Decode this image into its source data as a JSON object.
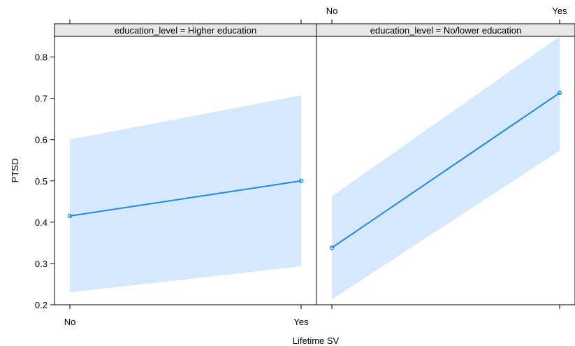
{
  "chart_data": {
    "type": "line",
    "xlabel": "Lifetime SV",
    "ylabel": "PTSD",
    "categories": [
      "No",
      "Yes"
    ],
    "ylim": [
      0.2,
      0.85
    ],
    "yticks": [
      0.2,
      0.3,
      0.4,
      0.5,
      0.6,
      0.7,
      0.8
    ],
    "ytick_labels": [
      "0.2",
      "0.3",
      "0.4",
      "0.5",
      "0.6",
      "0.7",
      "0.8"
    ],
    "panels": [
      {
        "strip": "education_level  = Higher education",
        "values": [
          0.415,
          0.5
        ],
        "lower": [
          0.23,
          0.293
        ],
        "upper": [
          0.6,
          0.707
        ]
      },
      {
        "strip": "education_level  = No/lower education",
        "values": [
          0.338,
          0.713
        ],
        "lower": [
          0.213,
          0.573
        ],
        "upper": [
          0.463,
          0.85
        ]
      }
    ],
    "colors": {
      "line": "#1e88e5",
      "band": "#d6e8fb",
      "strip": "#e8e8e8"
    }
  }
}
